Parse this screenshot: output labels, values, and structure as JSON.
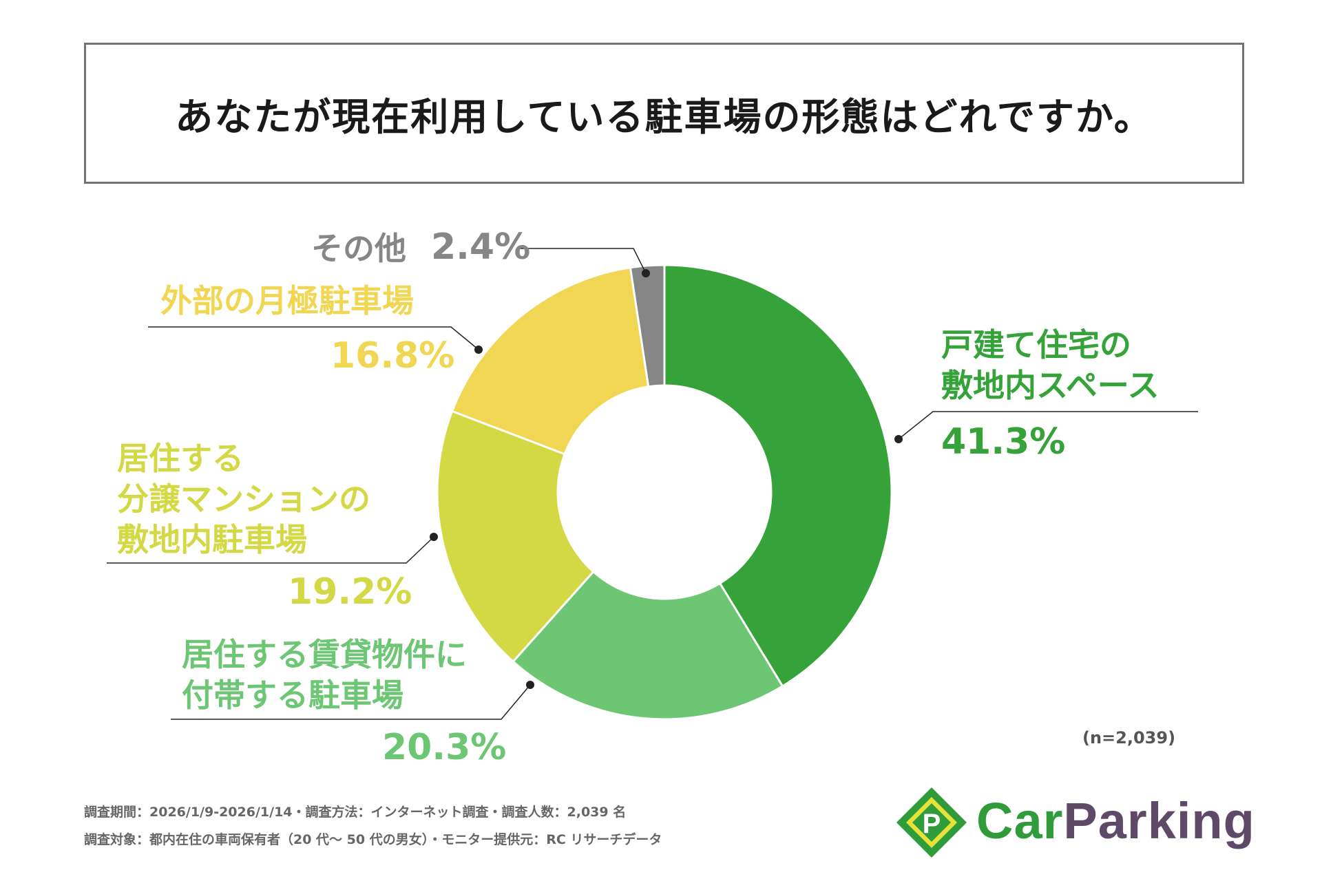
{
  "chart_data": {
    "type": "pie",
    "title": "あなたが現在利用している駐車場の形態はどれですか。",
    "sample": "(n=2,039)",
    "slices": [
      {
        "label": "戸建て住宅の\n敷地内スペース",
        "value": 41.3,
        "pct": "41.3%",
        "color": "#36a23a"
      },
      {
        "label": "居住する賃貸物件に\n付帯する駐車場",
        "value": 20.3,
        "pct": "20.3%",
        "color": "#6dc673"
      },
      {
        "label": "居住する\n分譲マンションの\n敷地内駐車場",
        "value": 19.2,
        "pct": "19.2%",
        "color": "#d3d944"
      },
      {
        "label": "外部の月極駐車場",
        "value": 16.8,
        "pct": "16.8%",
        "color": "#f0d653"
      },
      {
        "label": "その他",
        "value": 2.4,
        "pct": "2.4%",
        "color": "#868686"
      }
    ]
  },
  "footer": {
    "line1": "調査期間：2026/1/9-2026/1/14・調査方法：インターネット調査・調査人数：2,039 名",
    "line2": "調査対象：都内在住の車両保有者（20 代〜 50 代の男女）・モニター提供元：RC リサーチデータ"
  },
  "logo": {
    "mark": "P",
    "text1": "Car",
    "text2": "Parking",
    "green": "#2f9b3a",
    "purple": "#5e4a66",
    "yellow": "#e6e23a"
  }
}
